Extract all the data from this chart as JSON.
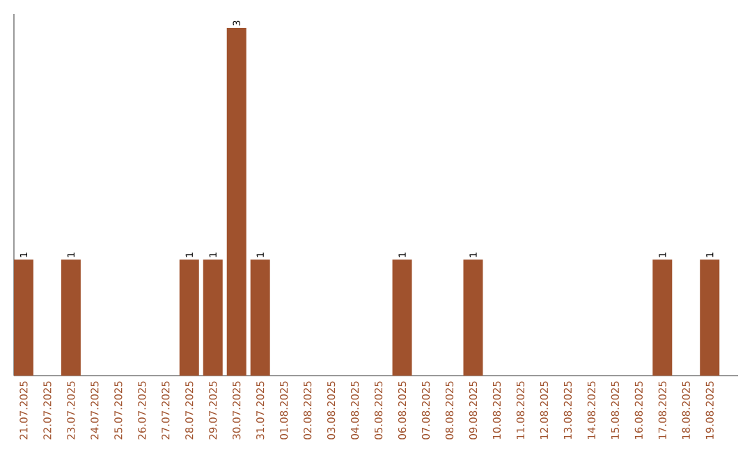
{
  "chart_data": {
    "type": "bar",
    "categories": [
      "21.07.2025",
      "22.07.2025",
      "23.07.2025",
      "24.07.2025",
      "25.07.2025",
      "26.07.2025",
      "27.07.2025",
      "28.07.2025",
      "29.07.2025",
      "30.07.2025",
      "31.07.2025",
      "01.08.2025",
      "02.08.2025",
      "03.08.2025",
      "04.08.2025",
      "05.08.2025",
      "06.08.2025",
      "07.08.2025",
      "08.08.2025",
      "09.08.2025",
      "10.08.2025",
      "11.08.2025",
      "12.08.2025",
      "13.08.2025",
      "14.08.2025",
      "15.08.2025",
      "16.08.2025",
      "17.08.2025",
      "18.08.2025",
      "19.08.2025"
    ],
    "values": [
      1,
      0,
      1,
      0,
      0,
      0,
      0,
      1,
      1,
      3,
      1,
      0,
      0,
      0,
      0,
      0,
      1,
      0,
      0,
      1,
      0,
      0,
      0,
      0,
      0,
      0,
      0,
      1,
      0,
      1
    ],
    "value_labels": [
      "1",
      null,
      "1",
      null,
      null,
      null,
      null,
      "1",
      "1",
      "3",
      "1",
      null,
      null,
      null,
      null,
      null,
      "1",
      null,
      null,
      "1",
      null,
      null,
      null,
      null,
      null,
      null,
      null,
      "1",
      null,
      "1"
    ],
    "color": "#a0522d"
  }
}
